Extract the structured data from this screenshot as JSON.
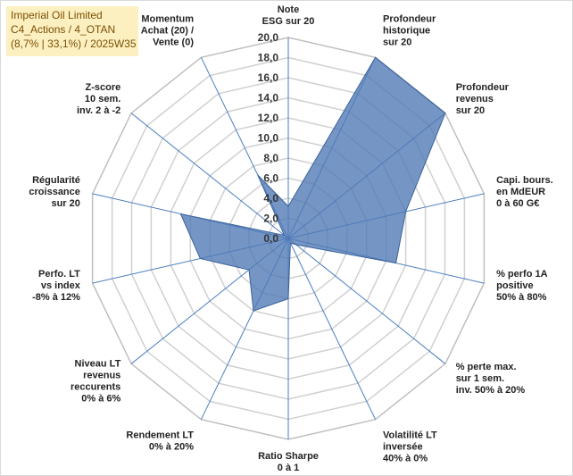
{
  "chart_data": {
    "type": "radar",
    "title_lines": [
      "Imperial Oil Limited",
      "C4_Actions / 4_OTAN",
      "(8,7% | 33,1%) / 2025W35"
    ],
    "r_range": [
      0,
      20
    ],
    "r_ticks": [
      "0,0",
      "2,0",
      "4,0",
      "6,0",
      "8,0",
      "10,0",
      "12,0",
      "14,0",
      "16,0",
      "18,0",
      "20,0"
    ],
    "grid": true,
    "axes": [
      {
        "lines": [
          "Note",
          "ESG sur 20"
        ]
      },
      {
        "lines": [
          "Profondeur",
          "historique",
          "sur 20"
        ]
      },
      {
        "lines": [
          "Profondeur",
          "revenus",
          "sur 20"
        ]
      },
      {
        "lines": [
          "Capi. bours.",
          "en MdEUR",
          "0 à 60 G€"
        ]
      },
      {
        "lines": [
          "% perfo 1A",
          "positive",
          "50% à 80%"
        ]
      },
      {
        "lines": [
          "% perte max.",
          "sur 1 sem.",
          "inv. 50% à 20%"
        ]
      },
      {
        "lines": [
          "Volatilité LT",
          "inversée",
          "40% à 0%"
        ]
      },
      {
        "lines": [
          "Ratio Sharpe",
          "0 à 1"
        ]
      },
      {
        "lines": [
          "Rendement LT",
          "0% à 20%"
        ]
      },
      {
        "lines": [
          "Niveau LT",
          "revenus",
          "reccurents",
          "0% à 6%"
        ]
      },
      {
        "lines": [
          "Perfo. LT",
          "vs index",
          "-8% à 12%"
        ]
      },
      {
        "lines": [
          "Régularité",
          "croissance",
          "sur 20"
        ]
      },
      {
        "lines": [
          "Z-score",
          "10 sem.",
          "inv. 2 à -2"
        ]
      },
      {
        "lines": [
          "Momentum",
          "Achat (20) /",
          "Vente (0)"
        ]
      }
    ],
    "series": [
      {
        "values": [
          3.2,
          20.0,
          20.0,
          12.0,
          11.0,
          1.0,
          0.5,
          6.0,
          8.0,
          5.0,
          9.0,
          11.0,
          0.5,
          7.0
        ]
      }
    ],
    "colors": {
      "fill": "#4e79b5",
      "stroke": "#3a629b",
      "axis": "#4a7ebf",
      "grid": "#d0d0d0"
    }
  }
}
